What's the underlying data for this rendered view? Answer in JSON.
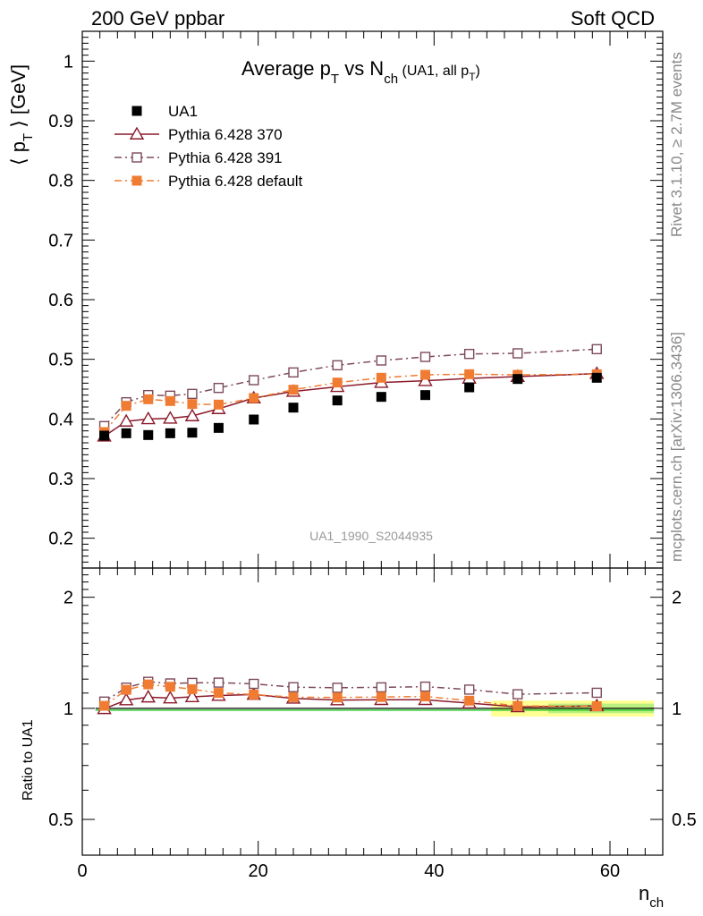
{
  "header": {
    "left": "200 GeV ppbar",
    "right": "Soft QCD"
  },
  "side_text": {
    "rivet": "Rivet 3.1.10, ≥ 2.7M events",
    "mcplots": "mcplots.cern.ch [arXiv:1306.3436]"
  },
  "chart_data": [
    {
      "type": "line",
      "title": {
        "main": "Average p",
        "main_sub": "T",
        "vs": " vs N",
        "vs_sub": "ch",
        "paren_open": " (UA1, all p",
        "paren_sub": "T",
        "paren_close": ")"
      },
      "watermark": "UA1_1990_S2044935",
      "ylabel": {
        "open": "⟨ p",
        "sub": "T",
        "close": " ⟩ [GeV]"
      },
      "ylim": [
        0.15,
        1.05
      ],
      "yticks": [
        "0.2",
        "0.3",
        "0.4",
        "0.5",
        "0.6",
        "0.7",
        "0.8",
        "0.9",
        "1"
      ],
      "xlim": [
        0,
        66
      ],
      "legend_position": "top-left",
      "series": [
        {
          "name": "UA1",
          "color": "#000000",
          "marker": "filled-square",
          "x": [
            2.5,
            5,
            7.5,
            10,
            12.5,
            15.5,
            19.5,
            24,
            29,
            34,
            39,
            44,
            49.5,
            58.5
          ],
          "values": [
            0.372,
            0.376,
            0.373,
            0.376,
            0.377,
            0.385,
            0.399,
            0.419,
            0.431,
            0.437,
            0.44,
            0.453,
            0.467,
            0.469
          ]
        },
        {
          "name": "Pythia 6.428 370",
          "color": "#8b1a2b",
          "marker": "open-triangle",
          "line": "solid",
          "x": [
            2.5,
            5,
            7.5,
            10,
            12.5,
            15.5,
            19.5,
            24,
            29,
            34,
            39,
            44,
            49.5,
            58.5
          ],
          "values": [
            0.371,
            0.396,
            0.4,
            0.401,
            0.405,
            0.417,
            0.435,
            0.446,
            0.454,
            0.461,
            0.464,
            0.468,
            0.471,
            0.476
          ]
        },
        {
          "name": "Pythia 6.428 391",
          "color": "#7d4a5a",
          "marker": "open-square",
          "line": "dashdot",
          "x": [
            2.5,
            5,
            7.5,
            10,
            12.5,
            15.5,
            19.5,
            24,
            29,
            34,
            39,
            44,
            49.5,
            58.5
          ],
          "values": [
            0.388,
            0.428,
            0.44,
            0.439,
            0.442,
            0.452,
            0.465,
            0.478,
            0.49,
            0.498,
            0.504,
            0.509,
            0.51,
            0.517
          ]
        },
        {
          "name": "Pythia 6.428 default",
          "color": "#f07c33",
          "marker": "filled-square",
          "line": "dashdot",
          "x": [
            2.5,
            5,
            7.5,
            10,
            12.5,
            15.5,
            19.5,
            24,
            29,
            34,
            39,
            44,
            49.5,
            58.5
          ],
          "values": [
            0.378,
            0.422,
            0.433,
            0.43,
            0.425,
            0.424,
            0.435,
            0.449,
            0.461,
            0.469,
            0.474,
            0.475,
            0.474,
            0.475
          ]
        }
      ]
    },
    {
      "type": "line",
      "ylabel": "Ratio to UA1",
      "ylim": [
        0.4,
        2.4
      ],
      "yscale": "log",
      "yticks": [
        "0.5",
        "1",
        "2"
      ],
      "yticks_right": [
        "0.5",
        "1",
        "2"
      ],
      "xlabel": {
        "main": "n",
        "sub": "ch"
      },
      "xlim": [
        0,
        66
      ],
      "xticks": [
        "0",
        "20",
        "40",
        "60"
      ],
      "band_color": "#ffff66",
      "band_inner_color": "#66dd66",
      "series": [
        {
          "name": "Pythia 6.428 370",
          "color": "#8b1a2b",
          "marker": "open-triangle",
          "line": "solid",
          "x": [
            2.5,
            5,
            7.5,
            10,
            12.5,
            15.5,
            19.5,
            24,
            29,
            34,
            39,
            44,
            49.5,
            58.5
          ],
          "values": [
            0.997,
            1.053,
            1.072,
            1.066,
            1.074,
            1.083,
            1.09,
            1.064,
            1.053,
            1.055,
            1.055,
            1.033,
            1.009,
            1.015
          ]
        },
        {
          "name": "Pythia 6.428 391",
          "color": "#7d4a5a",
          "marker": "open-square",
          "line": "dashdot",
          "x": [
            2.5,
            5,
            7.5,
            10,
            12.5,
            15.5,
            19.5,
            24,
            29,
            34,
            39,
            44,
            49.5,
            58.5
          ],
          "values": [
            1.043,
            1.138,
            1.18,
            1.168,
            1.172,
            1.174,
            1.165,
            1.141,
            1.137,
            1.14,
            1.145,
            1.124,
            1.092,
            1.102
          ]
        },
        {
          "name": "Pythia 6.428 default",
          "color": "#f07c33",
          "marker": "filled-square",
          "line": "dashdot",
          "x": [
            2.5,
            5,
            7.5,
            10,
            12.5,
            15.5,
            19.5,
            24,
            29,
            34,
            39,
            44,
            49.5,
            58.5
          ],
          "values": [
            1.016,
            1.122,
            1.161,
            1.144,
            1.127,
            1.101,
            1.09,
            1.072,
            1.07,
            1.073,
            1.077,
            1.049,
            1.015,
            1.013
          ]
        }
      ]
    }
  ]
}
